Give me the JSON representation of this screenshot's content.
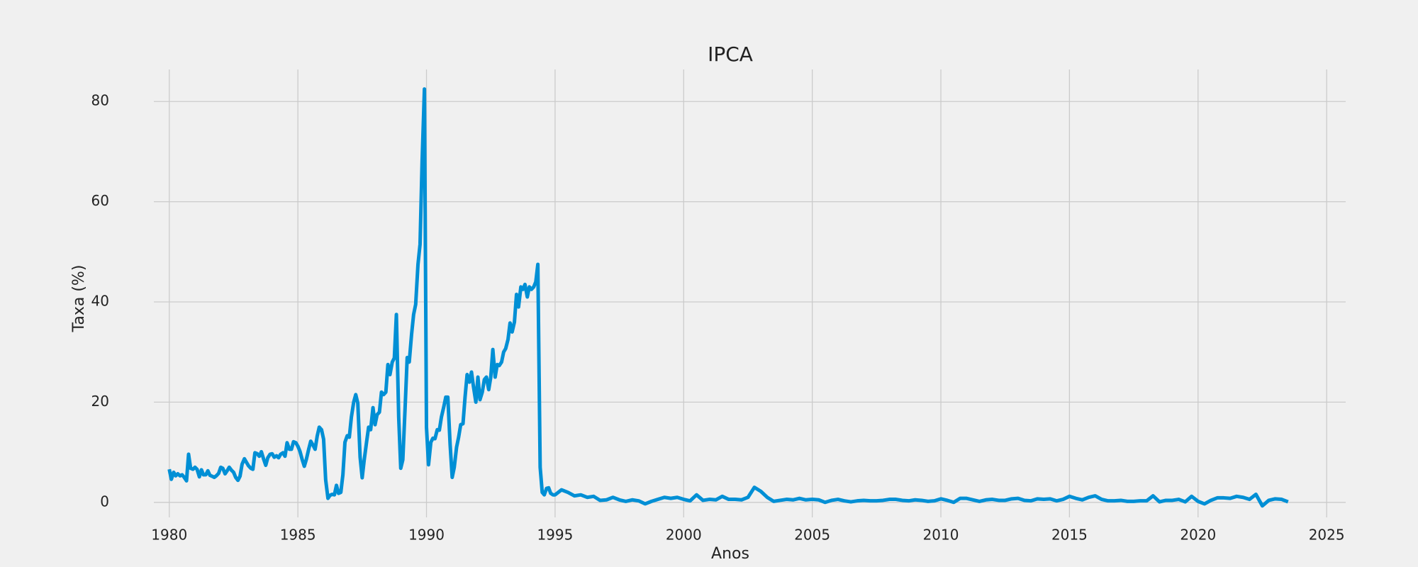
{
  "chart_data": {
    "type": "line",
    "title": "IPCA",
    "x_label": "Anos",
    "y_label": "Taxa (%)",
    "xlim": [
      1979.4,
      2025.74
    ],
    "ylim": [
      -3.0,
      86.4
    ],
    "xticks": [
      1980,
      1985,
      1990,
      1995,
      2000,
      2005,
      2010,
      2015,
      2020,
      2025
    ],
    "yticks": [
      0,
      20,
      40,
      60,
      80
    ],
    "grid": true,
    "x": [
      1980,
      1980.08,
      1980.17,
      1980.25,
      1980.33,
      1980.42,
      1980.5,
      1980.58,
      1980.67,
      1980.75,
      1980.83,
      1980.92,
      1981,
      1981.08,
      1981.17,
      1981.25,
      1981.33,
      1981.42,
      1981.5,
      1981.58,
      1981.67,
      1981.75,
      1981.83,
      1981.92,
      1982,
      1982.08,
      1982.17,
      1982.25,
      1982.33,
      1982.42,
      1982.5,
      1982.58,
      1982.67,
      1982.75,
      1982.83,
      1982.92,
      1983,
      1983.08,
      1983.17,
      1983.25,
      1983.33,
      1983.42,
      1983.5,
      1983.58,
      1983.67,
      1983.75,
      1983.83,
      1983.92,
      1984,
      1984.08,
      1984.17,
      1984.25,
      1984.33,
      1984.42,
      1984.5,
      1984.58,
      1984.67,
      1984.75,
      1984.83,
      1984.92,
      1985,
      1985.08,
      1985.17,
      1985.25,
      1985.33,
      1985.42,
      1985.5,
      1985.58,
      1985.67,
      1985.75,
      1985.83,
      1985.92,
      1986,
      1986.08,
      1986.17,
      1986.25,
      1986.33,
      1986.42,
      1986.5,
      1986.58,
      1986.67,
      1986.75,
      1986.83,
      1986.92,
      1987,
      1987.08,
      1987.17,
      1987.25,
      1987.33,
      1987.42,
      1987.5,
      1987.58,
      1987.67,
      1987.75,
      1987.83,
      1987.92,
      1988,
      1988.08,
      1988.17,
      1988.25,
      1988.33,
      1988.42,
      1988.5,
      1988.58,
      1988.67,
      1988.75,
      1988.83,
      1988.92,
      1989,
      1989.08,
      1989.17,
      1989.25,
      1989.33,
      1989.42,
      1989.5,
      1989.58,
      1989.67,
      1989.75,
      1989.83,
      1989.92,
      1990,
      1990.08,
      1990.17,
      1990.25,
      1990.33,
      1990.42,
      1990.5,
      1990.58,
      1990.67,
      1990.75,
      1990.83,
      1990.92,
      1991,
      1991.08,
      1991.17,
      1991.25,
      1991.33,
      1991.42,
      1991.5,
      1991.58,
      1991.67,
      1991.75,
      1991.83,
      1991.92,
      1992,
      1992.08,
      1992.17,
      1992.25,
      1992.33,
      1992.42,
      1992.5,
      1992.58,
      1992.67,
      1992.75,
      1992.83,
      1992.92,
      1993,
      1993.08,
      1993.17,
      1993.25,
      1993.33,
      1993.42,
      1993.5,
      1993.58,
      1993.67,
      1993.75,
      1993.83,
      1993.92,
      1994,
      1994.08,
      1994.17,
      1994.25,
      1994.33,
      1994.42,
      1994.5,
      1994.58,
      1994.67,
      1994.75,
      1994.83,
      1994.92,
      1995,
      1995.25,
      1995.5,
      1995.75,
      1996,
      1996.25,
      1996.5,
      1996.75,
      1997,
      1997.25,
      1997.5,
      1997.75,
      1998,
      1998.25,
      1998.5,
      1998.75,
      1999,
      1999.25,
      1999.5,
      1999.75,
      2000,
      2000.25,
      2000.5,
      2000.75,
      2001,
      2001.25,
      2001.5,
      2001.75,
      2002,
      2002.25,
      2002.5,
      2002.75,
      2003,
      2003.25,
      2003.5,
      2003.75,
      2004,
      2004.25,
      2004.5,
      2004.75,
      2005,
      2005.25,
      2005.5,
      2005.75,
      2006,
      2006.25,
      2006.5,
      2006.75,
      2007,
      2007.25,
      2007.5,
      2007.75,
      2008,
      2008.25,
      2008.5,
      2008.75,
      2009,
      2009.25,
      2009.5,
      2009.75,
      2010,
      2010.25,
      2010.5,
      2010.75,
      2011,
      2011.25,
      2011.5,
      2011.75,
      2012,
      2012.25,
      2012.5,
      2012.75,
      2013,
      2013.25,
      2013.5,
      2013.75,
      2014,
      2014.25,
      2014.5,
      2014.75,
      2015,
      2015.25,
      2015.5,
      2015.75,
      2016,
      2016.25,
      2016.5,
      2016.75,
      2017,
      2017.25,
      2017.5,
      2017.75,
      2018,
      2018.25,
      2018.5,
      2018.75,
      2019,
      2019.25,
      2019.5,
      2019.75,
      2020,
      2020.25,
      2020.5,
      2020.75,
      2021,
      2021.25,
      2021.5,
      2021.75,
      2022,
      2022.25,
      2022.5,
      2022.75,
      2023,
      2023.25,
      2023.5
    ],
    "series": [
      {
        "name": "IPCA",
        "color": "#008fd5",
        "values": [
          6.6,
          4.6,
          6.0,
          5.3,
          5.7,
          5.3,
          5.5,
          5.0,
          4.3,
          9.6,
          6.8,
          6.6,
          7.0,
          6.6,
          5.1,
          6.5,
          5.5,
          5.5,
          6.3,
          5.4,
          5.2,
          5.0,
          5.3,
          5.8,
          7.0,
          6.8,
          5.7,
          6.3,
          7.0,
          6.4,
          6.0,
          5.0,
          4.4,
          5.2,
          7.6,
          8.7,
          8.0,
          7.3,
          6.8,
          6.6,
          9.9,
          9.7,
          9.2,
          10.1,
          8.6,
          7.4,
          8.9,
          9.6,
          9.7,
          9.0,
          9.3,
          8.9,
          9.6,
          9.9,
          9.2,
          11.9,
          10.6,
          10.6,
          12.1,
          11.9,
          11.2,
          10.2,
          8.5,
          7.2,
          8.6,
          10.6,
          12.2,
          11.5,
          10.6,
          13.2,
          15.0,
          14.5,
          12.6,
          4.5,
          0.8,
          1.4,
          1.6,
          1.5,
          3.4,
          1.8,
          2.0,
          5.5,
          12.0,
          13.3,
          13.0,
          17.0,
          20.0,
          21.5,
          19.8,
          9.0,
          4.9,
          8.5,
          12.0,
          15.0,
          14.5,
          18.9,
          15.5,
          17.5,
          18.0,
          22.0,
          21.5,
          22.0,
          27.5,
          25.5,
          28.0,
          28.8,
          37.5,
          17.0,
          6.8,
          8.5,
          19.0,
          28.9,
          28.0,
          33.5,
          37.5,
          39.5,
          47.5,
          51.5,
          68.0,
          82.5,
          15.0,
          7.5,
          12.0,
          12.8,
          12.7,
          14.5,
          14.4,
          17.0,
          19.0,
          21.0,
          21.0,
          11.5,
          5.0,
          7.0,
          11.0,
          13.0,
          15.5,
          15.7,
          21.0,
          25.5,
          24.0,
          26.0,
          23.0,
          20.0,
          25.0,
          20.5,
          22.0,
          24.5,
          25.0,
          22.5,
          25.0,
          30.5,
          25.0,
          27.5,
          27.3,
          28.0,
          30.0,
          30.7,
          32.5,
          35.8,
          34.0,
          36.0,
          41.5,
          39.0,
          43.0,
          42.5,
          43.5,
          41.0,
          43.0,
          42.5,
          43.0,
          44.0,
          47.5,
          7.0,
          2.0,
          1.5,
          2.8,
          2.9,
          1.8,
          1.5,
          1.5,
          2.5,
          2.0,
          1.3,
          1.5,
          1.0,
          1.2,
          0.4,
          0.5,
          1.0,
          0.5,
          0.2,
          0.5,
          0.3,
          -0.3,
          0.2,
          0.6,
          1.0,
          0.8,
          1.0,
          0.6,
          0.3,
          1.5,
          0.4,
          0.6,
          0.5,
          1.2,
          0.6,
          0.6,
          0.5,
          1.0,
          3.0,
          2.2,
          1.0,
          0.2,
          0.4,
          0.6,
          0.5,
          0.8,
          0.5,
          0.6,
          0.5,
          0.0,
          0.4,
          0.6,
          0.3,
          0.1,
          0.3,
          0.4,
          0.3,
          0.3,
          0.4,
          0.6,
          0.6,
          0.4,
          0.3,
          0.5,
          0.4,
          0.2,
          0.3,
          0.7,
          0.4,
          0.0,
          0.8,
          0.8,
          0.5,
          0.2,
          0.5,
          0.6,
          0.4,
          0.4,
          0.7,
          0.8,
          0.4,
          0.3,
          0.7,
          0.6,
          0.7,
          0.3,
          0.6,
          1.2,
          0.8,
          0.5,
          1.0,
          1.3,
          0.6,
          0.3,
          0.3,
          0.4,
          0.2,
          0.2,
          0.3,
          0.3,
          1.3,
          0.1,
          0.4,
          0.4,
          0.6,
          0.1,
          1.2,
          0.2,
          -0.3,
          0.4,
          0.9,
          0.9,
          0.8,
          1.2,
          1.0,
          0.6,
          1.6,
          -0.7,
          0.4,
          0.7,
          0.6,
          0.1
        ]
      }
    ]
  }
}
